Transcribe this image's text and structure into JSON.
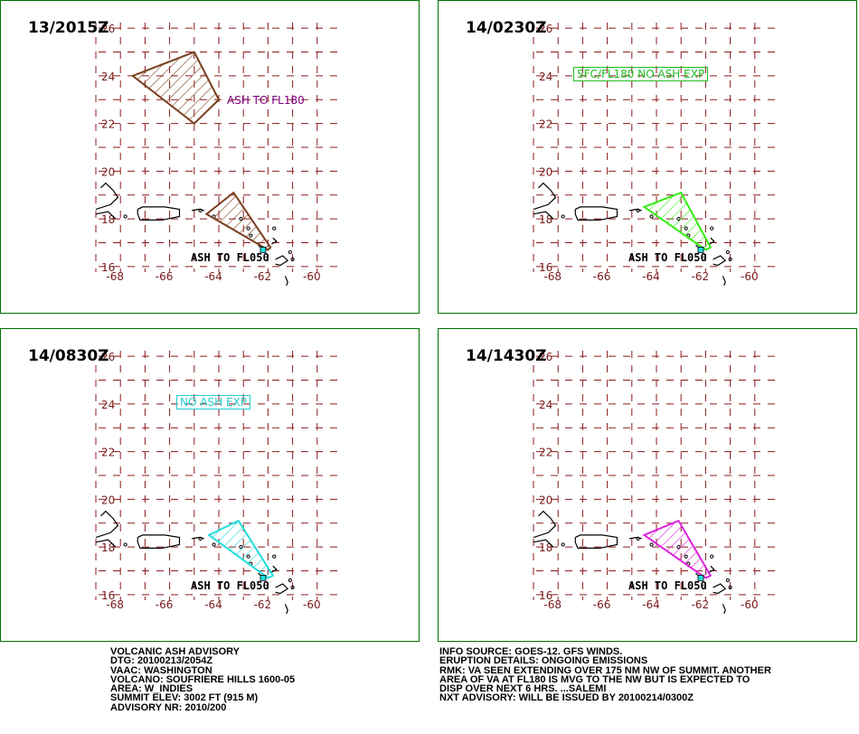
{
  "panels": [
    {
      "title": "13/2015Z",
      "polygons": [
        {
          "color": "#7a3f1e",
          "pts": [
            [
              -67.5,
              24.0
            ],
            [
              -65.0,
              25.0
            ],
            [
              -64.0,
              23.0
            ],
            [
              -65.0,
              22.0
            ]
          ]
        },
        {
          "color": "#7a3f1e",
          "pts": [
            [
              -64.5,
              18.2
            ],
            [
              -63.4,
              19.1
            ],
            [
              -61.9,
              16.8
            ],
            [
              -62.0,
              16.7
            ]
          ]
        }
      ],
      "labels": [
        {
          "text": "ASH TO FL180",
          "style": "plain",
          "color": "#800080"
        },
        {
          "text": "ASH TO FL050",
          "style": "mono",
          "color": "#000000"
        }
      ]
    },
    {
      "title": "14/0230Z",
      "polygons": [
        {
          "color": "#33ee11",
          "pts": [
            [
              -64.5,
              18.5
            ],
            [
              -63.0,
              19.1
            ],
            [
              -61.8,
              16.8
            ],
            [
              -62.0,
              16.7
            ]
          ]
        }
      ],
      "labels": [
        {
          "text": "SFC/FL180 NO ASH EXP",
          "style": "boxed",
          "color": "#22bb22"
        },
        {
          "text": "ASH TO FL050",
          "style": "mono",
          "color": "#000000"
        }
      ]
    },
    {
      "title": "14/0830Z",
      "polygons": [
        {
          "color": "#22dddd",
          "pts": [
            [
              -64.4,
              18.5
            ],
            [
              -63.2,
              19.1
            ],
            [
              -61.8,
              16.8
            ],
            [
              -62.0,
              16.7
            ]
          ]
        }
      ],
      "labels": [
        {
          "text": "NO ASH EXP",
          "style": "boxed",
          "color": "#22cccc"
        },
        {
          "text": "ASH TO FL050",
          "style": "mono",
          "color": "#000000"
        }
      ]
    },
    {
      "title": "14/1430Z",
      "polygons": [
        {
          "color": "#dd22dd",
          "pts": [
            [
              -64.5,
              18.5
            ],
            [
              -63.1,
              19.1
            ],
            [
              -61.8,
              16.8
            ],
            [
              -62.0,
              16.7
            ]
          ]
        }
      ],
      "labels": [
        {
          "text": "ASH TO FL050",
          "style": "mono",
          "color": "#000000"
        }
      ]
    }
  ],
  "axis": {
    "lat_labels": [
      "26",
      "24",
      "22",
      "20",
      "18",
      "16"
    ],
    "lon_labels": [
      "-68",
      "-66",
      "-64",
      "-62",
      "-60"
    ],
    "grid_color": "#8b1a1a",
    "tick_color": "#7a1a1a"
  },
  "advisory_left": [
    "VOLCANIC ASH ADVISORY",
    "DTG: 20100213/2054Z",
    "VAAC: WASHINGTON",
    "VOLCANO: SOUFRIERE HILLS 1600-05",
    "AREA: W_INDIES",
    "SUMMIT ELEV: 3002 FT (915 M)",
    "ADVISORY NR: 2010/200"
  ],
  "advisory_right": [
    "INFO SOURCE: GOES-12. GFS WINDS.",
    "ERUPTION DETAILS: ONGOING EMISSIONS",
    "RMK: VA SEEN EXTENDING OVER 175 NM NW OF SUMMIT. ANOTHER",
    "AREA OF VA AT FL180 IS MVG TO THE NW BUT IS EXPECTED TO",
    "DISP OVER NEXT 6 HRS. ...SALEMI",
    "NXT ADVISORY: WILL BE ISSUED BY 20100214/0300Z"
  ]
}
